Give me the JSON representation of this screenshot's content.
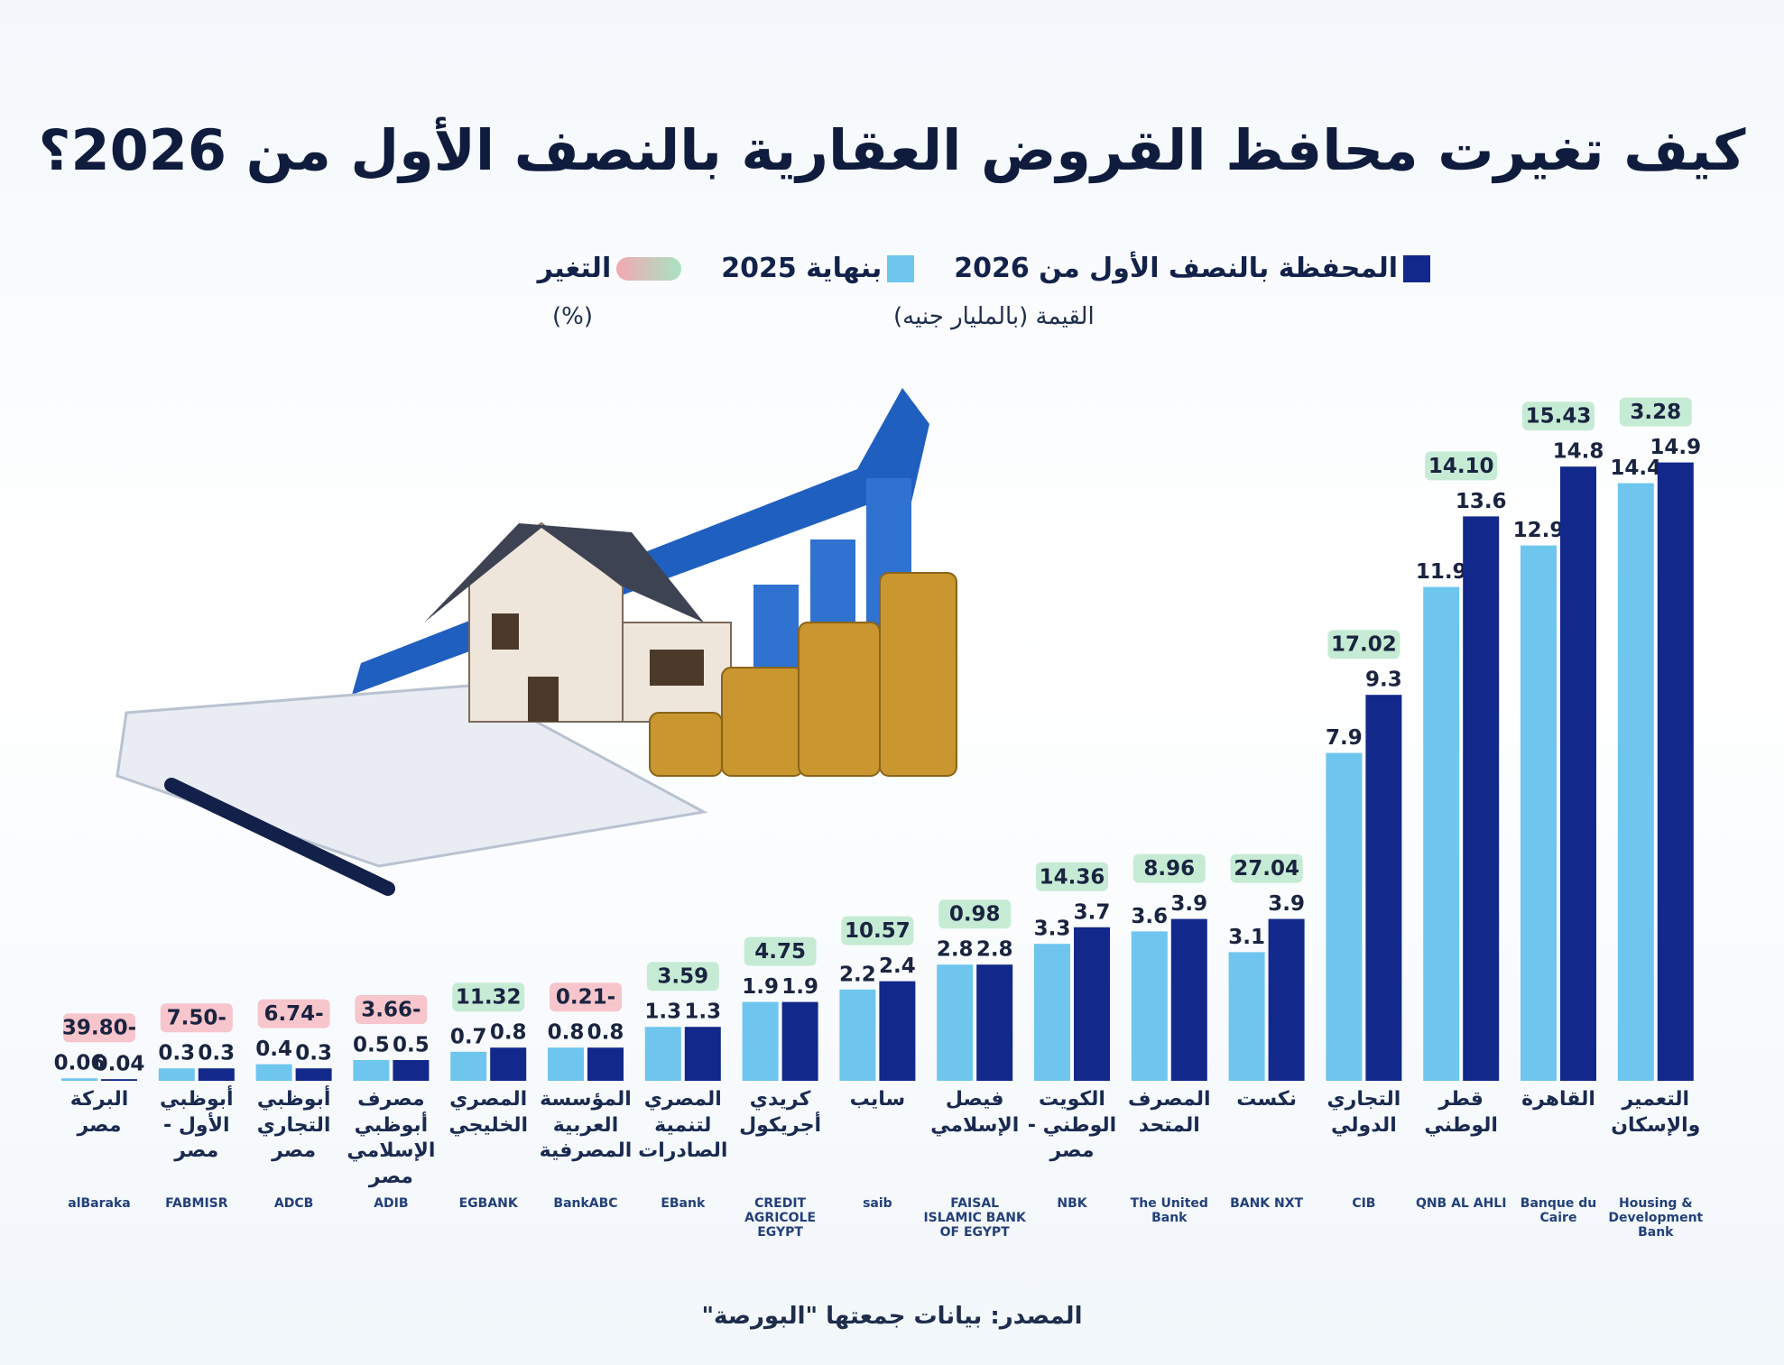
{
  "chart_data": {
    "type": "bar",
    "title": "كيف تغيرت محافظ القروض العقارية بالنصف الأول من 2026؟",
    "value_caption": "القيمة (بالمليار جنيه)",
    "source": "المصدر: بيانات جمعتها \"البورصة\"",
    "categories": [
      "البركة مصر",
      "أبوظبي الأول - مصر",
      "أبوظبي التجاري مصر",
      "مصرف أبوظبي الإسلامي مصر",
      "المصري الخليجي",
      "المؤسسة العربية المصرفية",
      "المصري لتنمية الصادرات",
      "كريدي أجريكول",
      "سايب",
      "فيصل الإسلامي",
      "الكويت الوطني - مصر",
      "المصرف المتحد",
      "نكست",
      "التجاري الدولي",
      "قطر الوطني",
      "القاهرة",
      "التعمير والإسكان"
    ],
    "logos": [
      "alBaraka",
      "FABMISR",
      "ADCB",
      "ADIB",
      "EGBANK",
      "BankABC",
      "EBank",
      "CREDIT AGRICOLE EGYPT",
      "saib",
      "FAISAL ISLAMIC BANK OF EGYPT",
      "NBK",
      "The United Bank",
      "BANK NXT",
      "CIB",
      "QNB AL AHLI",
      "Banque du Caire",
      "Housing & Development Bank"
    ],
    "series": [
      {
        "name": "المحفظة بالنصف الأول من 2026",
        "color": "#12288a",
        "values": [
          0.04,
          0.3,
          0.3,
          0.5,
          0.8,
          0.8,
          1.3,
          1.9,
          2.4,
          2.8,
          3.7,
          3.9,
          3.9,
          9.3,
          13.6,
          14.8,
          14.9
        ]
      },
      {
        "name": "بنهاية 2025",
        "color": "#6ec6ee",
        "values": [
          0.06,
          0.3,
          0.4,
          0.5,
          0.7,
          0.8,
          1.3,
          1.9,
          2.2,
          2.8,
          3.3,
          3.6,
          3.1,
          7.9,
          11.9,
          12.9,
          14.4
        ]
      }
    ],
    "change": {
      "name": "التغير",
      "unit": "(%)",
      "positive_color": "#c6ebd5",
      "negative_color": "#f7c5cc",
      "values": [
        -39.8,
        -7.5,
        -6.74,
        -3.66,
        11.32,
        -0.21,
        3.59,
        4.75,
        10.57,
        0.98,
        14.36,
        8.96,
        27.04,
        17.02,
        14.1,
        15.43,
        3.28
      ],
      "value_labels": [
        "39.80-",
        "7.50-",
        "6.74-",
        "3.66-",
        "11.32",
        "0.21-",
        "3.59",
        "4.75",
        "10.57",
        "0.98",
        "14.36",
        "8.96",
        "27.04",
        "17.02",
        "14.10",
        "15.43",
        "3.28"
      ]
    }
  }
}
